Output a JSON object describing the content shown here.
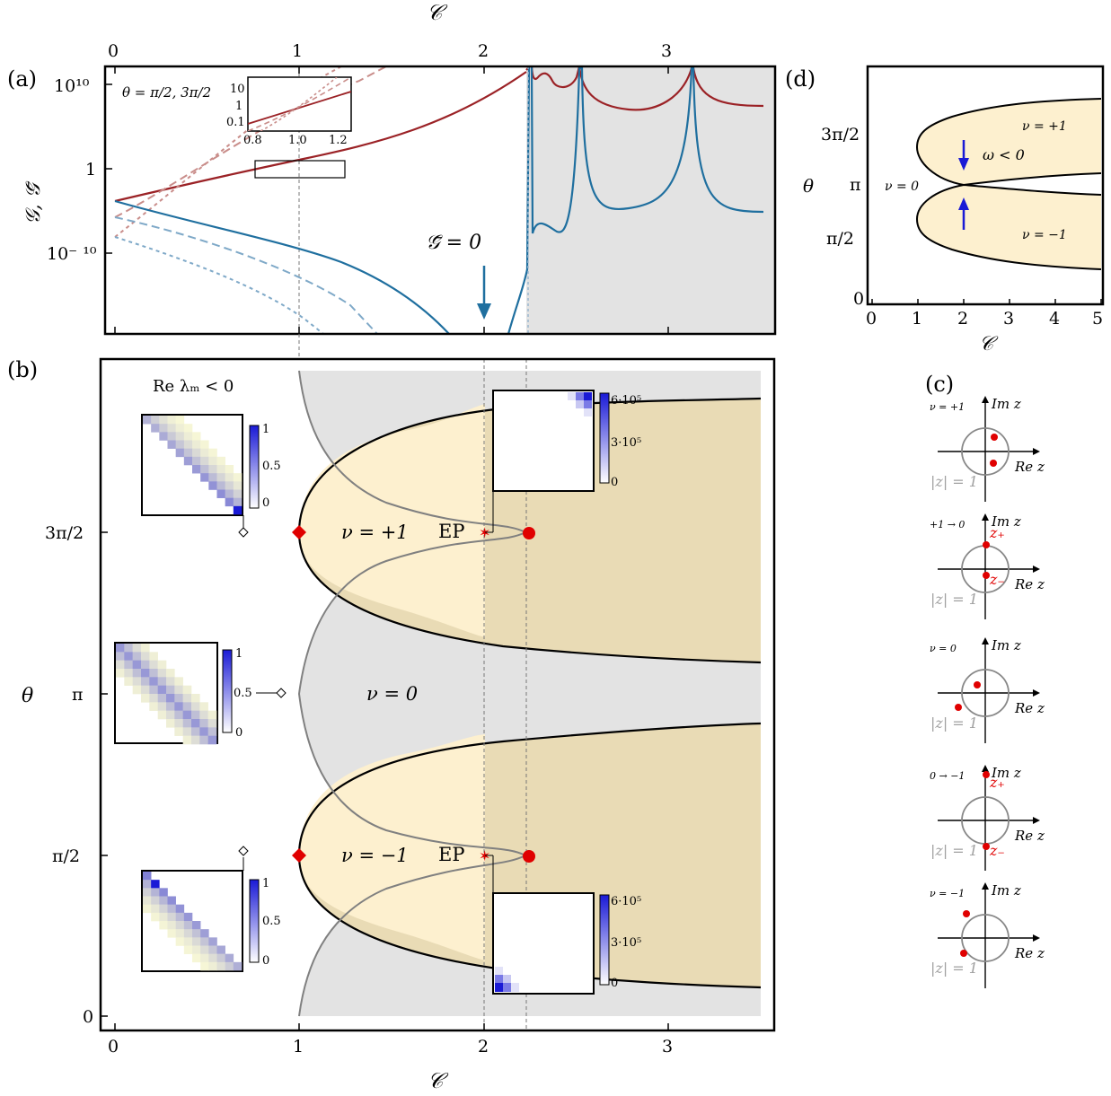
{
  "panel_labels": {
    "a": "(a)",
    "b": "(b)",
    "c": "(c)",
    "d": "(d)"
  },
  "panel_a": {
    "top_axis_label": "𝒞",
    "top_ticks": [
      "0",
      "1",
      "2",
      "3"
    ],
    "y_label": "𝒢, 𝒢̄",
    "y_ticks": [
      "10¹⁰",
      "1",
      "10⁻ ¹⁰"
    ],
    "theta_note": "θ = π/2,  3π/2",
    "inset_x_ticks": [
      "0.8",
      "1.0",
      "1.2"
    ],
    "inset_y_ticks": [
      "10",
      "1",
      "0.1"
    ],
    "arrow_label": "𝒢̄ = 0",
    "colors": {
      "G": "#9b2226",
      "Gbar": "#1f6f9f",
      "shade": "#e3e3e3"
    }
  },
  "panel_b": {
    "x_label": "𝒞",
    "x_ticks": [
      "0",
      "1",
      "2",
      "3"
    ],
    "y_label": "θ",
    "y_ticks": [
      "3π/2",
      "π",
      "π/2",
      "0"
    ],
    "region_label": "Re λₘ < 0",
    "nu_plus": "ν = +1",
    "nu_zero": "ν = 0",
    "nu_minus": "ν = −1",
    "ep": "EP",
    "cb_small": [
      "1",
      "0.5",
      "0"
    ],
    "cb_large": [
      "6·10⁵",
      "3·10⁵",
      "0"
    ],
    "colors": {
      "lightregion": "#fdf0cf",
      "darkregion": "#e9dbb5",
      "grey": "#e3e3e3",
      "marker": "#e00000"
    }
  },
  "panel_c": {
    "rows": [
      {
        "nu": "ν = +1",
        "im": "Im z",
        "re": "Re z",
        "unit": "|z| = 1"
      },
      {
        "nu": "+1 → 0",
        "im": "Im z",
        "re": "Re z",
        "unit": "|z| = 1",
        "zp": "z₊",
        "zm": "z₋"
      },
      {
        "nu": "ν = 0",
        "im": "Im z",
        "re": "Re z",
        "unit": "|z| = 1"
      },
      {
        "nu": "0 → −1",
        "im": "Im z",
        "re": "Re z",
        "unit": "|z| = 1",
        "zp": "z₊",
        "zm": "z₋"
      },
      {
        "nu": "ν = −1",
        "im": "Im z",
        "re": "Re z",
        "unit": "|z| = 1"
      }
    ]
  },
  "panel_d": {
    "x_label": "𝒞",
    "x_ticks": [
      "0",
      "1",
      "2",
      "3",
      "4",
      "5"
    ],
    "y_label": "θ",
    "y_ticks": [
      "3π/2",
      "π",
      "π/2",
      "0"
    ],
    "nu_plus": "ν = +1",
    "nu_zero": "ν = 0",
    "nu_minus": "ν = −1",
    "omega": "ω < 0"
  }
}
